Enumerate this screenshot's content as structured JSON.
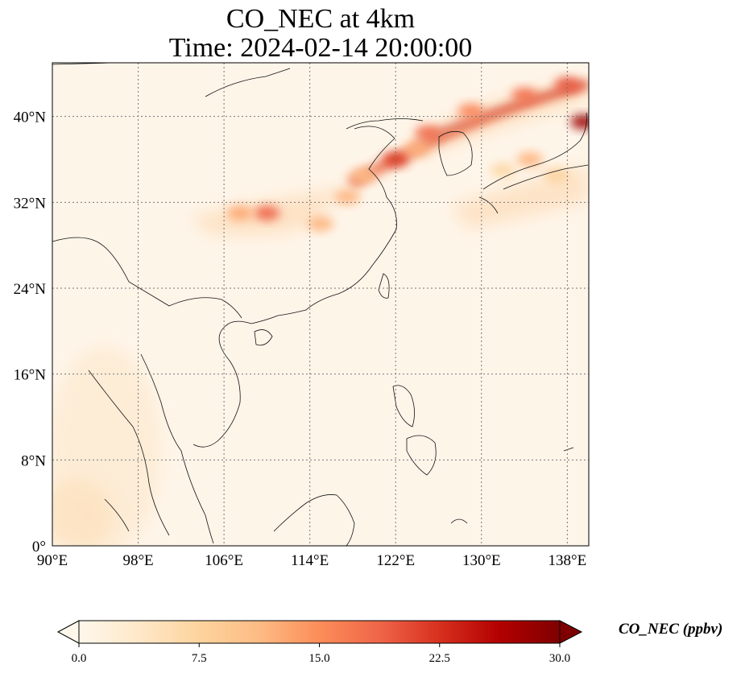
{
  "title": {
    "line1": "CO_NEC at 4km",
    "line2": "Time: 2024-02-14 20:00:00"
  },
  "map": {
    "lon_range": [
      90,
      140
    ],
    "lat_range": [
      0,
      45
    ],
    "lon_ticks": [
      {
        "value": 90,
        "label": "90°E"
      },
      {
        "value": 98,
        "label": "98°E"
      },
      {
        "value": 106,
        "label": "106°E"
      },
      {
        "value": 114,
        "label": "114°E"
      },
      {
        "value": 122,
        "label": "122°E"
      },
      {
        "value": 130,
        "label": "130°E"
      },
      {
        "value": 138,
        "label": "138°E"
      }
    ],
    "lat_ticks": [
      {
        "value": 0,
        "label": "0°"
      },
      {
        "value": 8,
        "label": "8°N"
      },
      {
        "value": 16,
        "label": "16°N"
      },
      {
        "value": 24,
        "label": "24°N"
      },
      {
        "value": 32,
        "label": "32°N"
      },
      {
        "value": 40,
        "label": "40°N"
      }
    ],
    "gridlines": true,
    "gridline_style": "dotted",
    "colormap": "OrRd",
    "plume": [
      {
        "lon": 122,
        "lat": 36,
        "value": 22
      },
      {
        "lon": 125,
        "lat": 38.5,
        "value": 18
      },
      {
        "lon": 129,
        "lat": 40.5,
        "value": 16
      },
      {
        "lon": 134,
        "lat": 42,
        "value": 18
      },
      {
        "lon": 138,
        "lat": 43,
        "value": 20
      },
      {
        "lon": 139.5,
        "lat": 39.5,
        "value": 28
      },
      {
        "lon": 110,
        "lat": 31,
        "value": 19
      },
      {
        "lon": 107.5,
        "lat": 31,
        "value": 13
      },
      {
        "lon": 115,
        "lat": 30,
        "value": 12
      },
      {
        "lon": 117.5,
        "lat": 32.5,
        "value": 12
      },
      {
        "lon": 119,
        "lat": 34.5,
        "value": 11
      },
      {
        "lon": 124,
        "lat": 37,
        "value": 12
      },
      {
        "lon": 134.5,
        "lat": 36,
        "value": 12
      },
      {
        "lon": 132,
        "lat": 35,
        "value": 7
      },
      {
        "lon": 137,
        "lat": 34.5,
        "value": 8
      }
    ]
  },
  "colorbar": {
    "label": "CO_NEC (ppbv)",
    "min": 0.0,
    "max": 30.0,
    "ticks": [
      "0.0",
      "7.5",
      "15.0",
      "22.5",
      "30.0"
    ],
    "extend": "both"
  }
}
